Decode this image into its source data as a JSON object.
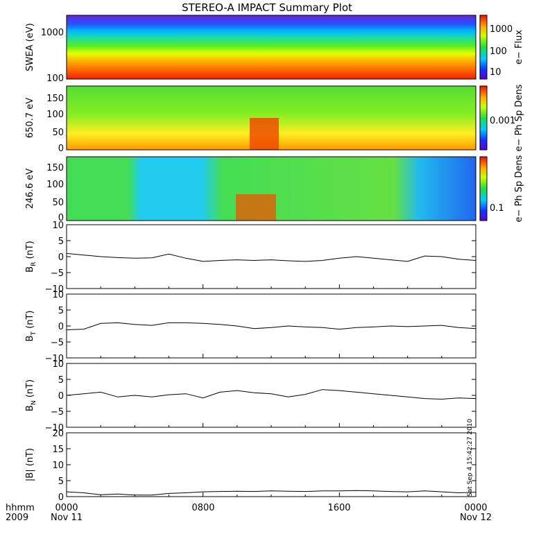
{
  "title": "STEREO-A IMPACT Summary Plot",
  "chart_data": [
    {
      "type": "heatmap",
      "name": "swea",
      "ylabel": "SWEA (eV)",
      "y_scale": "log",
      "ylim": [
        100,
        2000
      ],
      "y_ticks": [
        "1000",
        "100"
      ],
      "colorbar": {
        "label": "e− Flux",
        "scale": "log",
        "ticks": [
          "1000",
          "100",
          "10"
        ]
      }
    },
    {
      "type": "heatmap",
      "name": "pad-650",
      "ylabel": "650.7 eV",
      "ylim": [
        0,
        180
      ],
      "y_ticks": [
        "150",
        "100",
        "50",
        "0"
      ],
      "colorbar": {
        "label": "e− Ph Sp Dens",
        "scale": "log",
        "ticks": [
          "0.001"
        ]
      }
    },
    {
      "type": "heatmap",
      "name": "pad-246",
      "ylabel": "246.6 eV",
      "ylim": [
        0,
        180
      ],
      "y_ticks": [
        "150",
        "100",
        "50",
        "0"
      ],
      "colorbar": {
        "label": "e− Ph Sp Dens",
        "scale": "log",
        "ticks": [
          "0.1"
        ]
      }
    },
    {
      "type": "line",
      "name": "br",
      "ylabel": "B",
      "ylabel_sub": "R",
      "ylabel_unit": "(nT)",
      "ylim": [
        -10,
        10
      ],
      "y_ticks": [
        "10",
        "5",
        "0",
        "−5",
        "−10"
      ],
      "x_hours": [
        0,
        1,
        2,
        3,
        4,
        5,
        6,
        7,
        8,
        9,
        10,
        11,
        12,
        13,
        14,
        15,
        16,
        17,
        18,
        19,
        20,
        21,
        22,
        23,
        24
      ],
      "values": [
        1.0,
        0.5,
        0.0,
        -0.3,
        -0.5,
        -0.4,
        0.8,
        -0.5,
        -1.5,
        -1.2,
        -1.0,
        -1.2,
        -1.0,
        -1.3,
        -1.5,
        -1.2,
        -0.5,
        0.0,
        -0.5,
        -1.0,
        -1.5,
        0.2,
        0.0,
        -0.8,
        -1.2
      ]
    },
    {
      "type": "line",
      "name": "bt",
      "ylabel": "B",
      "ylabel_sub": "T",
      "ylabel_unit": "(nT)",
      "ylim": [
        -10,
        10
      ],
      "y_ticks": [
        "10",
        "5",
        "0",
        "−5",
        "−10"
      ],
      "x_hours": [
        0,
        1,
        2,
        3,
        4,
        5,
        6,
        7,
        8,
        9,
        10,
        11,
        12,
        13,
        14,
        15,
        16,
        17,
        18,
        19,
        20,
        21,
        22,
        23,
        24
      ],
      "values": [
        -1.2,
        -1.0,
        0.8,
        1.0,
        0.5,
        0.2,
        1.0,
        1.0,
        0.8,
        0.5,
        0.0,
        -0.8,
        -0.5,
        0.0,
        -0.3,
        -0.5,
        -1.0,
        -0.5,
        -0.3,
        0.0,
        -0.2,
        0.0,
        0.2,
        -0.5,
        -0.8
      ]
    },
    {
      "type": "line",
      "name": "bn",
      "ylabel": "B",
      "ylabel_sub": "N",
      "ylabel_unit": "(nT)",
      "ylim": [
        -10,
        10
      ],
      "y_ticks": [
        "10",
        "5",
        "0",
        "−5",
        "−10"
      ],
      "x_hours": [
        0,
        1,
        2,
        3,
        4,
        5,
        6,
        7,
        8,
        9,
        10,
        11,
        12,
        13,
        14,
        15,
        16,
        17,
        18,
        19,
        20,
        21,
        22,
        23,
        24
      ],
      "values": [
        0.0,
        0.5,
        1.0,
        -0.5,
        0.0,
        -0.5,
        0.2,
        0.5,
        -0.8,
        1.0,
        1.5,
        0.8,
        0.5,
        -0.5,
        0.3,
        1.8,
        1.5,
        1.0,
        0.5,
        0.0,
        -0.5,
        -1.0,
        -1.2,
        -0.8,
        -1.0
      ]
    },
    {
      "type": "line",
      "name": "bmag",
      "ylabel": "|B|",
      "ylabel_unit": "(nT)",
      "ylim": [
        0,
        20
      ],
      "y_ticks": [
        "20",
        "15",
        "10",
        "5",
        "0"
      ],
      "x_hours": [
        0,
        1,
        2,
        3,
        4,
        5,
        6,
        7,
        8,
        9,
        10,
        11,
        12,
        13,
        14,
        15,
        16,
        17,
        18,
        19,
        20,
        21,
        22,
        23,
        24
      ],
      "values": [
        1.5,
        1.2,
        0.6,
        0.8,
        0.5,
        0.5,
        1.0,
        1.2,
        1.5,
        1.6,
        1.7,
        1.6,
        1.8,
        1.7,
        1.6,
        1.8,
        1.8,
        1.9,
        1.8,
        1.6,
        1.5,
        1.8,
        1.5,
        1.2,
        1.4
      ]
    }
  ],
  "x_axis": {
    "labels": [
      "0000",
      "0800",
      "1600",
      "0000"
    ],
    "dates": [
      "Nov 11",
      "Nov 12"
    ],
    "left_label_top": "hhmm",
    "left_label_bottom": "2009"
  },
  "stamp": "Sat Sep  4 15:42:27 2010",
  "colors": {
    "line": "#000000",
    "axes": "#000000",
    "background": "#ffffff"
  }
}
